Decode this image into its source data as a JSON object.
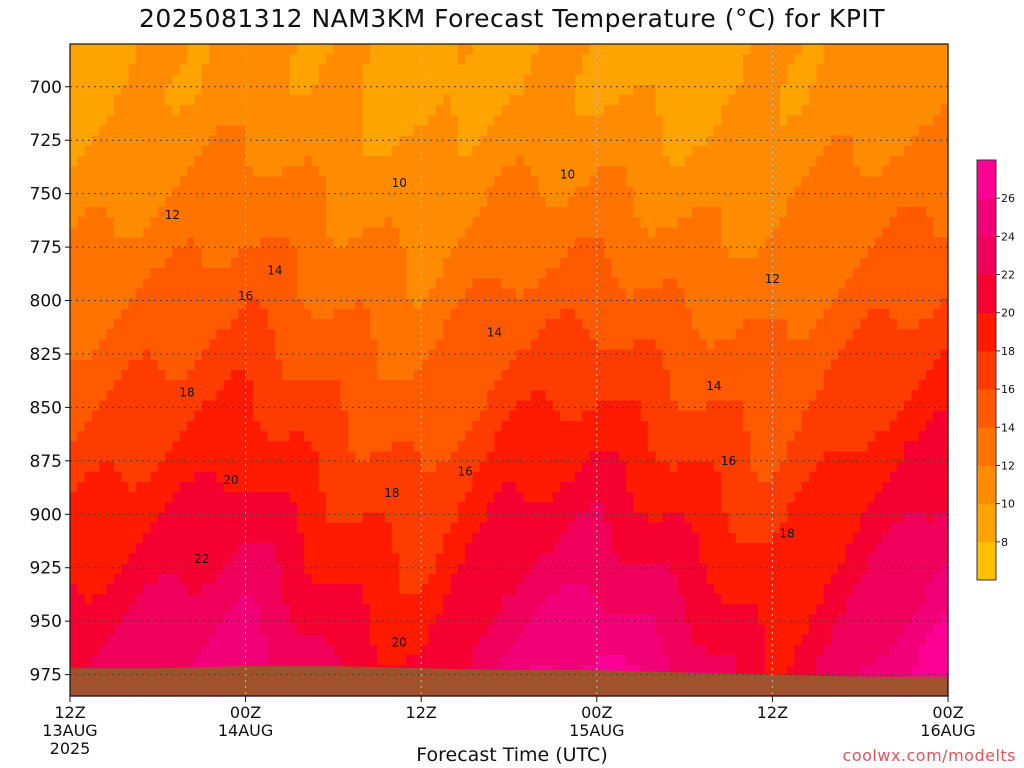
{
  "chart_data": {
    "type": "heatmap",
    "title": "2025081312 NAM3KM Forecast Temperature (°C) for KPIT",
    "xlabel": "Forecast Time (UTC)",
    "ylabel": "",
    "y_scale": "pressure (hPa), inverted",
    "ylim": [
      985,
      680
    ],
    "y_ticks": [
      700,
      725,
      750,
      775,
      800,
      825,
      850,
      875,
      900,
      925,
      950,
      975
    ],
    "x_ticks": [
      {
        "hour": 0,
        "line1": "12Z",
        "line2": "13AUG",
        "line3": "2025"
      },
      {
        "hour": 12,
        "line1": "00Z",
        "line2": "14AUG",
        "line3": ""
      },
      {
        "hour": 24,
        "line1": "12Z",
        "line2": "",
        "line3": ""
      },
      {
        "hour": 36,
        "line1": "00Z",
        "line2": "15AUG",
        "line3": ""
      },
      {
        "hour": 48,
        "line1": "12Z",
        "line2": "",
        "line3": ""
      },
      {
        "hour": 60,
        "line1": "00Z",
        "line2": "16AUG",
        "line3": ""
      }
    ],
    "xlim": [
      0,
      60
    ],
    "grid": true,
    "color_scale": {
      "levels": [
        6,
        8,
        10,
        12,
        14,
        16,
        18,
        20,
        22,
        24,
        26,
        28
      ],
      "labels": [
        "8",
        "10",
        "12",
        "14",
        "16",
        "18",
        "20",
        "22",
        "24",
        "26"
      ],
      "colors": [
        "#ffc100",
        "#ffa300",
        "#ff8c00",
        "#ff7400",
        "#ff5a00",
        "#ff3c00",
        "#ff1a00",
        "#f50030",
        "#f0005a",
        "#f20078",
        "#ff0095"
      ]
    },
    "contour_labels": [
      {
        "hour": 22.5,
        "p": 745,
        "text": "10"
      },
      {
        "hour": 34,
        "p": 741,
        "text": "10"
      },
      {
        "hour": 7,
        "p": 760,
        "text": "12"
      },
      {
        "hour": 48,
        "p": 790,
        "text": "12"
      },
      {
        "hour": 14,
        "p": 786,
        "text": "14"
      },
      {
        "hour": 29,
        "p": 815,
        "text": "14"
      },
      {
        "hour": 44,
        "p": 840,
        "text": "14"
      },
      {
        "hour": 12,
        "p": 798,
        "text": "16"
      },
      {
        "hour": 27,
        "p": 880,
        "text": "16"
      },
      {
        "hour": 45,
        "p": 875,
        "text": "16"
      },
      {
        "hour": 8,
        "p": 843,
        "text": "18"
      },
      {
        "hour": 22,
        "p": 890,
        "text": "18"
      },
      {
        "hour": 49,
        "p": 909,
        "text": "18"
      },
      {
        "hour": 11,
        "p": 884,
        "text": "20"
      },
      {
        "hour": 22.5,
        "p": 960,
        "text": "20"
      },
      {
        "hour": 9,
        "p": 921,
        "text": "22"
      }
    ],
    "profile": {
      "x": [
        0,
        6,
        12,
        18,
        24,
        30,
        36,
        42,
        48,
        54,
        60
      ],
      "temp_at_975": [
        22,
        24,
        26,
        22,
        20,
        25,
        27,
        24,
        20,
        24,
        28
      ],
      "temp_at_700": [
        9,
        10,
        11,
        10,
        9,
        10,
        10,
        9,
        10,
        11,
        11
      ]
    },
    "surface_pressure": [
      972,
      972,
      971,
      971,
      972,
      973,
      973,
      974,
      975,
      976,
      976
    ]
  },
  "credit": "coolwx.com/modelts"
}
